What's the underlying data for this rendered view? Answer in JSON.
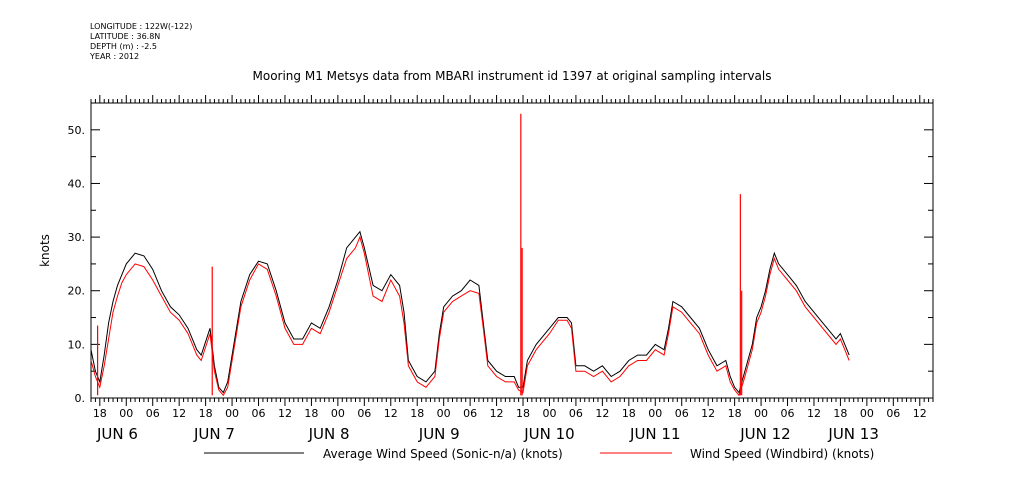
{
  "header": {
    "longitude": "LONGITUDE : 122W(-122)",
    "latitude": "LATITUDE : 36.8N",
    "depth": "DEPTH (m) : -2.5",
    "year": "YEAR : 2012"
  },
  "chart_data": {
    "type": "line",
    "title": "Mooring M1 Metsys data from MBARI instrument id 1397 at original sampling intervals",
    "ylabel": "knots",
    "ylim": [
      0,
      55
    ],
    "y_ticks": [
      0,
      10,
      20,
      30,
      40,
      50
    ],
    "y_tick_labels": [
      "0.",
      "10.",
      "20.",
      "30.",
      "40.",
      "50."
    ],
    "x_unit": "hours since 2012-06-06 00:00",
    "xlim": [
      -8,
      183
    ],
    "x_hour_ticks": [
      -6,
      0,
      6,
      12,
      18,
      24,
      30,
      36,
      42,
      48,
      54,
      60,
      66,
      72,
      78,
      84,
      90,
      96,
      102,
      108,
      114,
      120,
      126,
      132,
      138,
      144,
      150,
      156,
      162,
      168,
      174,
      180
    ],
    "x_hour_labels": [
      "18",
      "00",
      "06",
      "12",
      "18",
      "00",
      "06",
      "12",
      "18",
      "00",
      "06",
      "12",
      "18",
      "00",
      "06",
      "12",
      "18",
      "00",
      "06",
      "12",
      "18",
      "00",
      "06",
      "12",
      "18",
      "00",
      "06",
      "12",
      "18",
      "00",
      "06",
      "12"
    ],
    "day_labels": [
      {
        "x": -2,
        "text": "JUN  6"
      },
      {
        "x": 20,
        "text": "JUN  7"
      },
      {
        "x": 46,
        "text": "JUN  8"
      },
      {
        "x": 71,
        "text": "JUN  9"
      },
      {
        "x": 96,
        "text": "JUN 10"
      },
      {
        "x": 120,
        "text": "JUN 11"
      },
      {
        "x": 145,
        "text": "JUN 12"
      },
      {
        "x": 165,
        "text": "JUN 13"
      }
    ],
    "grid": false,
    "legend_position": "bottom",
    "series": [
      {
        "name": "Average Wind Speed (Sonic-n/a) (knots)",
        "color": "#000000",
        "points": [
          [
            -8,
            9
          ],
          [
            -7,
            5
          ],
          [
            -6,
            3
          ],
          [
            -5,
            8
          ],
          [
            -4,
            14
          ],
          [
            -3,
            18
          ],
          [
            -2,
            21
          ],
          [
            -1,
            23
          ],
          [
            0,
            25
          ],
          [
            2,
            27
          ],
          [
            4,
            26.5
          ],
          [
            6,
            24
          ],
          [
            8,
            20
          ],
          [
            10,
            17
          ],
          [
            12,
            15.5
          ],
          [
            14,
            13
          ],
          [
            16,
            9
          ],
          [
            17,
            8
          ],
          [
            19,
            13
          ],
          [
            20,
            6
          ],
          [
            21,
            2
          ],
          [
            22,
            1
          ],
          [
            23,
            3
          ],
          [
            24,
            8
          ],
          [
            26,
            18
          ],
          [
            28,
            23
          ],
          [
            30,
            25.5
          ],
          [
            32,
            25
          ],
          [
            34,
            20
          ],
          [
            36,
            14
          ],
          [
            38,
            11
          ],
          [
            40,
            11
          ],
          [
            42,
            14
          ],
          [
            44,
            13
          ],
          [
            46,
            17
          ],
          [
            48,
            22
          ],
          [
            50,
            28
          ],
          [
            52,
            30
          ],
          [
            53,
            31
          ],
          [
            54,
            28
          ],
          [
            56,
            21
          ],
          [
            58,
            20
          ],
          [
            60,
            23
          ],
          [
            62,
            21
          ],
          [
            63,
            16
          ],
          [
            64,
            7
          ],
          [
            66,
            4
          ],
          [
            68,
            3
          ],
          [
            70,
            5
          ],
          [
            71,
            12
          ],
          [
            72,
            17
          ],
          [
            74,
            19
          ],
          [
            76,
            20
          ],
          [
            78,
            22
          ],
          [
            80,
            21
          ],
          [
            81,
            14
          ],
          [
            82,
            7
          ],
          [
            84,
            5
          ],
          [
            86,
            4
          ],
          [
            88,
            4
          ],
          [
            89,
            2
          ],
          [
            90,
            2
          ],
          [
            91,
            7
          ],
          [
            93,
            10
          ],
          [
            96,
            13
          ],
          [
            98,
            15
          ],
          [
            100,
            15
          ],
          [
            101,
            14
          ],
          [
            102,
            6
          ],
          [
            104,
            6
          ],
          [
            106,
            5
          ],
          [
            108,
            6
          ],
          [
            110,
            4
          ],
          [
            112,
            5
          ],
          [
            114,
            7
          ],
          [
            116,
            8
          ],
          [
            118,
            8
          ],
          [
            120,
            10
          ],
          [
            122,
            9
          ],
          [
            123,
            13
          ],
          [
            124,
            18
          ],
          [
            126,
            17
          ],
          [
            128,
            15
          ],
          [
            130,
            13
          ],
          [
            132,
            9
          ],
          [
            134,
            6
          ],
          [
            136,
            7
          ],
          [
            137,
            4
          ],
          [
            138,
            2
          ],
          [
            139,
            1
          ],
          [
            140,
            4
          ],
          [
            142,
            10
          ],
          [
            143,
            15
          ],
          [
            144,
            17
          ],
          [
            145,
            20
          ],
          [
            146,
            24
          ],
          [
            147,
            27
          ],
          [
            148,
            25
          ],
          [
            150,
            23
          ],
          [
            152,
            21
          ],
          [
            154,
            18
          ],
          [
            156,
            16
          ],
          [
            158,
            14
          ],
          [
            160,
            12
          ],
          [
            161,
            11
          ],
          [
            162,
            12
          ],
          [
            163,
            10
          ],
          [
            164,
            8
          ]
        ]
      },
      {
        "name": "Wind Speed (Windbird) (knots)",
        "color": "#ff0000",
        "points": [
          [
            -8,
            7
          ],
          [
            -7,
            4
          ],
          [
            -6,
            2
          ],
          [
            -5,
            6
          ],
          [
            -4,
            11
          ],
          [
            -3,
            16
          ],
          [
            -2,
            19
          ],
          [
            -1,
            21.5
          ],
          [
            0,
            23
          ],
          [
            2,
            25
          ],
          [
            4,
            24.5
          ],
          [
            6,
            22
          ],
          [
            8,
            19
          ],
          [
            10,
            16
          ],
          [
            12,
            14.5
          ],
          [
            14,
            12
          ],
          [
            16,
            8
          ],
          [
            17,
            7
          ],
          [
            19,
            12
          ],
          [
            20,
            5
          ],
          [
            21,
            1.5
          ],
          [
            22,
            0.5
          ],
          [
            23,
            2
          ],
          [
            24,
            7
          ],
          [
            26,
            17
          ],
          [
            28,
            22
          ],
          [
            30,
            25
          ],
          [
            32,
            24
          ],
          [
            34,
            19
          ],
          [
            36,
            13
          ],
          [
            38,
            10
          ],
          [
            40,
            10
          ],
          [
            42,
            13
          ],
          [
            44,
            12
          ],
          [
            46,
            16
          ],
          [
            48,
            21
          ],
          [
            50,
            26
          ],
          [
            52,
            28
          ],
          [
            53,
            30
          ],
          [
            54,
            27
          ],
          [
            56,
            19
          ],
          [
            58,
            18
          ],
          [
            60,
            22
          ],
          [
            62,
            19
          ],
          [
            63,
            14
          ],
          [
            64,
            6
          ],
          [
            66,
            3
          ],
          [
            68,
            2
          ],
          [
            70,
            4
          ],
          [
            71,
            11
          ],
          [
            72,
            16
          ],
          [
            74,
            18
          ],
          [
            76,
            19
          ],
          [
            78,
            20
          ],
          [
            80,
            19.5
          ],
          [
            81,
            13
          ],
          [
            82,
            6
          ],
          [
            84,
            4
          ],
          [
            86,
            3
          ],
          [
            88,
            3
          ],
          [
            89,
            1.5
          ],
          [
            90,
            1
          ],
          [
            91,
            6
          ],
          [
            93,
            9
          ],
          [
            96,
            12
          ],
          [
            98,
            14.5
          ],
          [
            100,
            14.5
          ],
          [
            101,
            13
          ],
          [
            102,
            5
          ],
          [
            104,
            5
          ],
          [
            106,
            4
          ],
          [
            108,
            5
          ],
          [
            110,
            3
          ],
          [
            112,
            4
          ],
          [
            114,
            6
          ],
          [
            116,
            7
          ],
          [
            118,
            7
          ],
          [
            120,
            9
          ],
          [
            122,
            8
          ],
          [
            123,
            12
          ],
          [
            124,
            17
          ],
          [
            126,
            16
          ],
          [
            128,
            14
          ],
          [
            130,
            12
          ],
          [
            132,
            8
          ],
          [
            134,
            5
          ],
          [
            136,
            6
          ],
          [
            137,
            3
          ],
          [
            138,
            1.5
          ],
          [
            139,
            0.5
          ],
          [
            140,
            3
          ],
          [
            142,
            9
          ],
          [
            143,
            14
          ],
          [
            144,
            16
          ],
          [
            145,
            19
          ],
          [
            146,
            23
          ],
          [
            147,
            26
          ],
          [
            148,
            24
          ],
          [
            150,
            22
          ],
          [
            152,
            20
          ],
          [
            154,
            17
          ],
          [
            156,
            15
          ],
          [
            158,
            13
          ],
          [
            160,
            11
          ],
          [
            161,
            10
          ],
          [
            162,
            11
          ],
          [
            163,
            9
          ],
          [
            164,
            7
          ]
        ],
        "spikes": [
          {
            "x": -6.5,
            "y": 13.5
          },
          {
            "x": 19.5,
            "y": 24.5
          },
          {
            "x": 89.5,
            "y": 53
          },
          {
            "x": 89.8,
            "y": 28
          },
          {
            "x": 139.3,
            "y": 38
          },
          {
            "x": 139.6,
            "y": 20
          }
        ]
      }
    ]
  }
}
